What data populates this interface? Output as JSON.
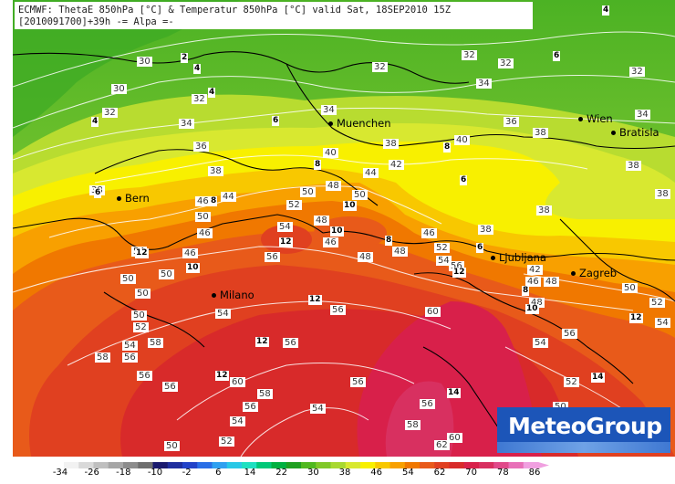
{
  "header": {
    "line1": "ECMWF: ThetaE 850hPa [°C] & Temperatur 850hPa [°C] valid Sat, 18SEP2010 15Z",
    "line2": "[2010091700]+39h -= Alpa =-"
  },
  "brand": {
    "name": "MeteoGroup",
    "color": "#1c55b8"
  },
  "cities": [
    {
      "name": "Bern"
    },
    {
      "name": "Muenchen"
    },
    {
      "name": "Wien"
    },
    {
      "name": "Bratisla"
    },
    {
      "name": "Milano"
    },
    {
      "name": "Ljubljana"
    },
    {
      "name": "Zagreb"
    }
  ],
  "thetae_labels": [
    "30",
    "30",
    "32",
    "34",
    "36",
    "38",
    "40",
    "42",
    "44",
    "46",
    "48",
    "50",
    "52",
    "54",
    "56",
    "58",
    "60",
    "62",
    "32",
    "34",
    "36",
    "38",
    "40",
    "42",
    "44",
    "46",
    "48",
    "50",
    "52",
    "54",
    "56",
    "58",
    "60",
    "32",
    "34",
    "36",
    "38",
    "40",
    "42",
    "44",
    "46",
    "48",
    "50",
    "52",
    "54",
    "56",
    "58",
    "60",
    "62",
    "30",
    "32",
    "34",
    "36",
    "38",
    "38",
    "36",
    "34",
    "32",
    "38",
    "46",
    "50",
    "52",
    "54",
    "56",
    "58",
    "60",
    "56",
    "54",
    "52",
    "50",
    "48",
    "46",
    "44",
    "42"
  ],
  "temperature_labels": [
    "2",
    "4",
    "4",
    "4",
    "6",
    "6",
    "8",
    "8",
    "8",
    "10",
    "10",
    "10",
    "12",
    "12",
    "12",
    "12",
    "12",
    "12",
    "12",
    "14",
    "14",
    "14",
    "12",
    "8",
    "10",
    "10",
    "6",
    "6",
    "8",
    "4",
    "6"
  ],
  "colorbar": {
    "ticks": [
      "-34",
      "-26",
      "-18",
      "-10",
      "-2",
      "6",
      "14",
      "22",
      "30",
      "38",
      "46",
      "54",
      "62",
      "70",
      "78",
      "86"
    ],
    "colors": [
      "#f2f2f2",
      "#d9d9d9",
      "#bfbfbf",
      "#a6a6a6",
      "#8c8c8c",
      "#6e6e6e",
      "#1a1a6e",
      "#1f2e9e",
      "#2342c8",
      "#2a6ee6",
      "#2fa0f0",
      "#28c8e6",
      "#1ee0c0",
      "#00c878",
      "#00b040",
      "#1fa020",
      "#50b820",
      "#80c828",
      "#a8d830",
      "#d8e830",
      "#f8f000",
      "#f8c800",
      "#f8a000",
      "#f07800",
      "#e85a1a",
      "#e04020",
      "#d82a2a",
      "#d8204a",
      "#d83060",
      "#e04a8a",
      "#e870b8",
      "#f0a0e0"
    ]
  }
}
